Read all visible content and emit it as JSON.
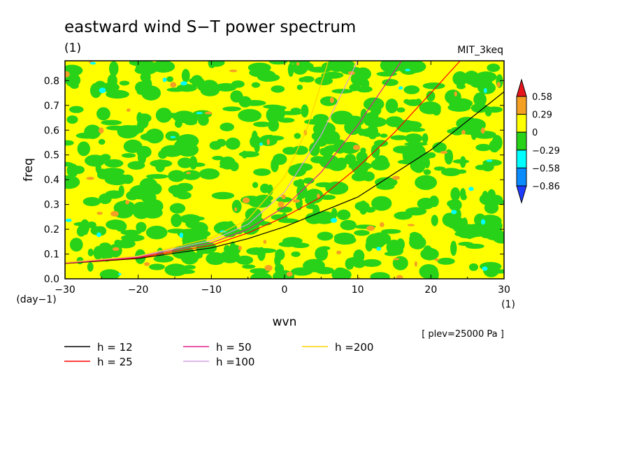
{
  "chart_data": {
    "type": "heatmap",
    "title": "eastward wind S−T power spectrum",
    "units_left": "(1)",
    "model_label": "MIT_3keq",
    "xlabel": "wvn",
    "x_units": "(1)",
    "ylabel": "freq",
    "y_units": "(day−1)",
    "xlim": [
      -30,
      30
    ],
    "ylim": [
      0,
      0.88
    ],
    "x_ticks": [
      -30,
      -20,
      -10,
      0,
      10,
      20,
      30
    ],
    "x_tick_labels": [
      "−30",
      "−20",
      "−10",
      "0",
      "10",
      "20",
      "30"
    ],
    "y_ticks": [
      0,
      0.1,
      0.2,
      0.3,
      0.4,
      0.5,
      0.6,
      0.7,
      0.8
    ],
    "y_tick_labels": [
      "0.0",
      "0.1",
      "0.2",
      "0.3",
      "0.4",
      "0.5",
      "0.6",
      "0.7",
      "0.8"
    ],
    "colorbar": {
      "labels": [
        "0.58",
        "0.29",
        "0",
        "−0.29",
        "−0.58",
        "−0.86"
      ],
      "levels": [
        0.58,
        0.29,
        0,
        -0.29,
        -0.58,
        -0.86
      ],
      "colors": [
        "#e8141c",
        "#f5a023",
        "#ffff00",
        "#28d219",
        "#00ffff",
        "#0a8cff",
        "#1e3cff"
      ]
    },
    "series": [
      {
        "name": "h = 12",
        "color": "#000000",
        "x": [
          -30,
          -20,
          -10,
          -5,
          0,
          10,
          20,
          30
        ],
        "y": [
          0.062,
          0.082,
          0.125,
          0.162,
          0.21,
          0.33,
          0.52,
          0.755
        ]
      },
      {
        "name": "h = 25",
        "color": "#ff0000",
        "x": [
          -30,
          -20,
          -10,
          -5,
          0,
          5,
          10,
          15,
          20,
          24
        ],
        "y": [
          0.063,
          0.085,
          0.135,
          0.185,
          0.25,
          0.33,
          0.45,
          0.59,
          0.75,
          0.88
        ]
      },
      {
        "name": "h = 50",
        "color": "#e0218a",
        "x": [
          -30,
          -20,
          -10,
          -5,
          0,
          5,
          10,
          16
        ],
        "y": [
          0.064,
          0.088,
          0.145,
          0.2,
          0.29,
          0.43,
          0.62,
          0.88
        ]
      },
      {
        "name": "h =100",
        "color": "#d4a0e0",
        "x": [
          -30,
          -20,
          -10,
          -5,
          0,
          5,
          10
        ],
        "y": [
          0.065,
          0.09,
          0.155,
          0.22,
          0.35,
          0.58,
          0.88
        ]
      },
      {
        "name": "h =200",
        "color": "#ffd200",
        "x": [
          -30,
          -20,
          -10,
          -5,
          0,
          3,
          6
        ],
        "y": [
          0.066,
          0.092,
          0.165,
          0.24,
          0.41,
          0.6,
          0.88
        ]
      }
    ],
    "annotation": "[ plev=25000 Pa ]"
  }
}
